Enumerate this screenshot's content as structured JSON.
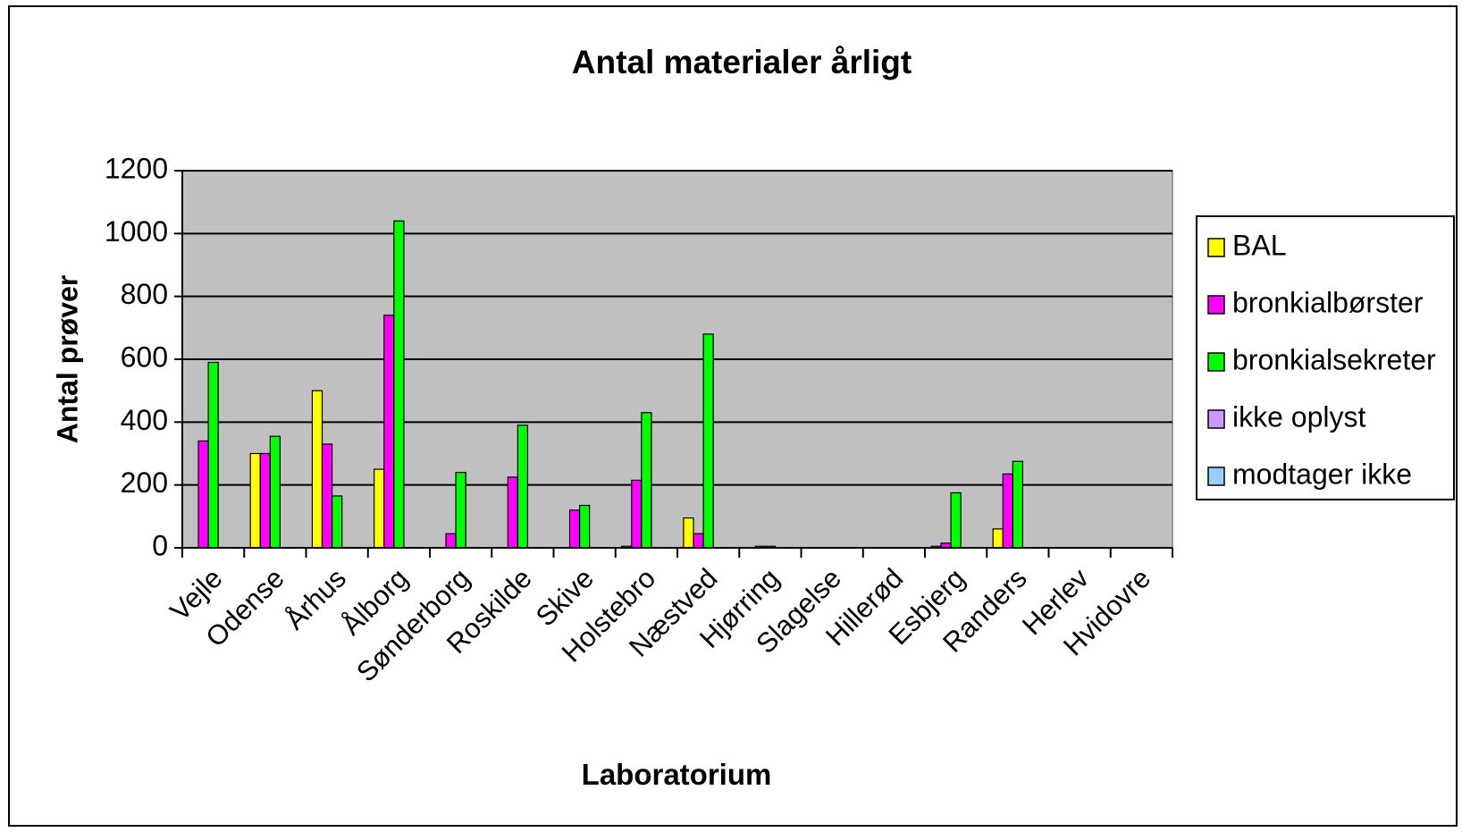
{
  "chart_data": {
    "type": "bar",
    "title": "Antal materialer årligt",
    "x_label": "Laboratorium",
    "y_label": "Antal prøver",
    "categories": [
      "Vejle",
      "Odense",
      "Århus",
      "Ålborg",
      "Sønderborg",
      "Roskilde",
      "Skive",
      "Holstebro",
      "Næstved",
      "Hjørring",
      "Slagelse",
      "Hillerød",
      "Esbjerg",
      "Randers",
      "Herlev",
      "Hvidovre"
    ],
    "series": [
      {
        "name": "BAL",
        "color": "#ffff00",
        "values": [
          0,
          300,
          500,
          250,
          0,
          0,
          0,
          5,
          95,
          0,
          0,
          0,
          5,
          60,
          0,
          0
        ]
      },
      {
        "name": "bronkialbørster",
        "color": "#ff00ff",
        "values": [
          340,
          300,
          330,
          740,
          45,
          225,
          120,
          215,
          45,
          5,
          0,
          0,
          15,
          235,
          0,
          0
        ]
      },
      {
        "name": "bronkialsekreter",
        "color": "#00ff00",
        "values": [
          590,
          355,
          165,
          1040,
          240,
          390,
          135,
          430,
          680,
          5,
          0,
          0,
          175,
          275,
          0,
          0
        ]
      },
      {
        "name": "ikke oplyst",
        "color": "#cc99ff",
        "values": [
          0,
          0,
          0,
          0,
          0,
          0,
          0,
          0,
          0,
          0,
          0,
          0,
          0,
          0,
          0,
          0
        ]
      },
      {
        "name": "modtager ikke",
        "color": "#99ccff",
        "values": [
          0,
          0,
          0,
          0,
          0,
          0,
          0,
          0,
          0,
          0,
          0,
          0,
          0,
          0,
          0,
          0
        ]
      }
    ],
    "ylim": [
      0,
      1200
    ],
    "yticks": [
      0,
      200,
      400,
      600,
      800,
      1000,
      1200
    ],
    "grid": true,
    "legend": "right",
    "plot_background": "#c0c0c0"
  }
}
